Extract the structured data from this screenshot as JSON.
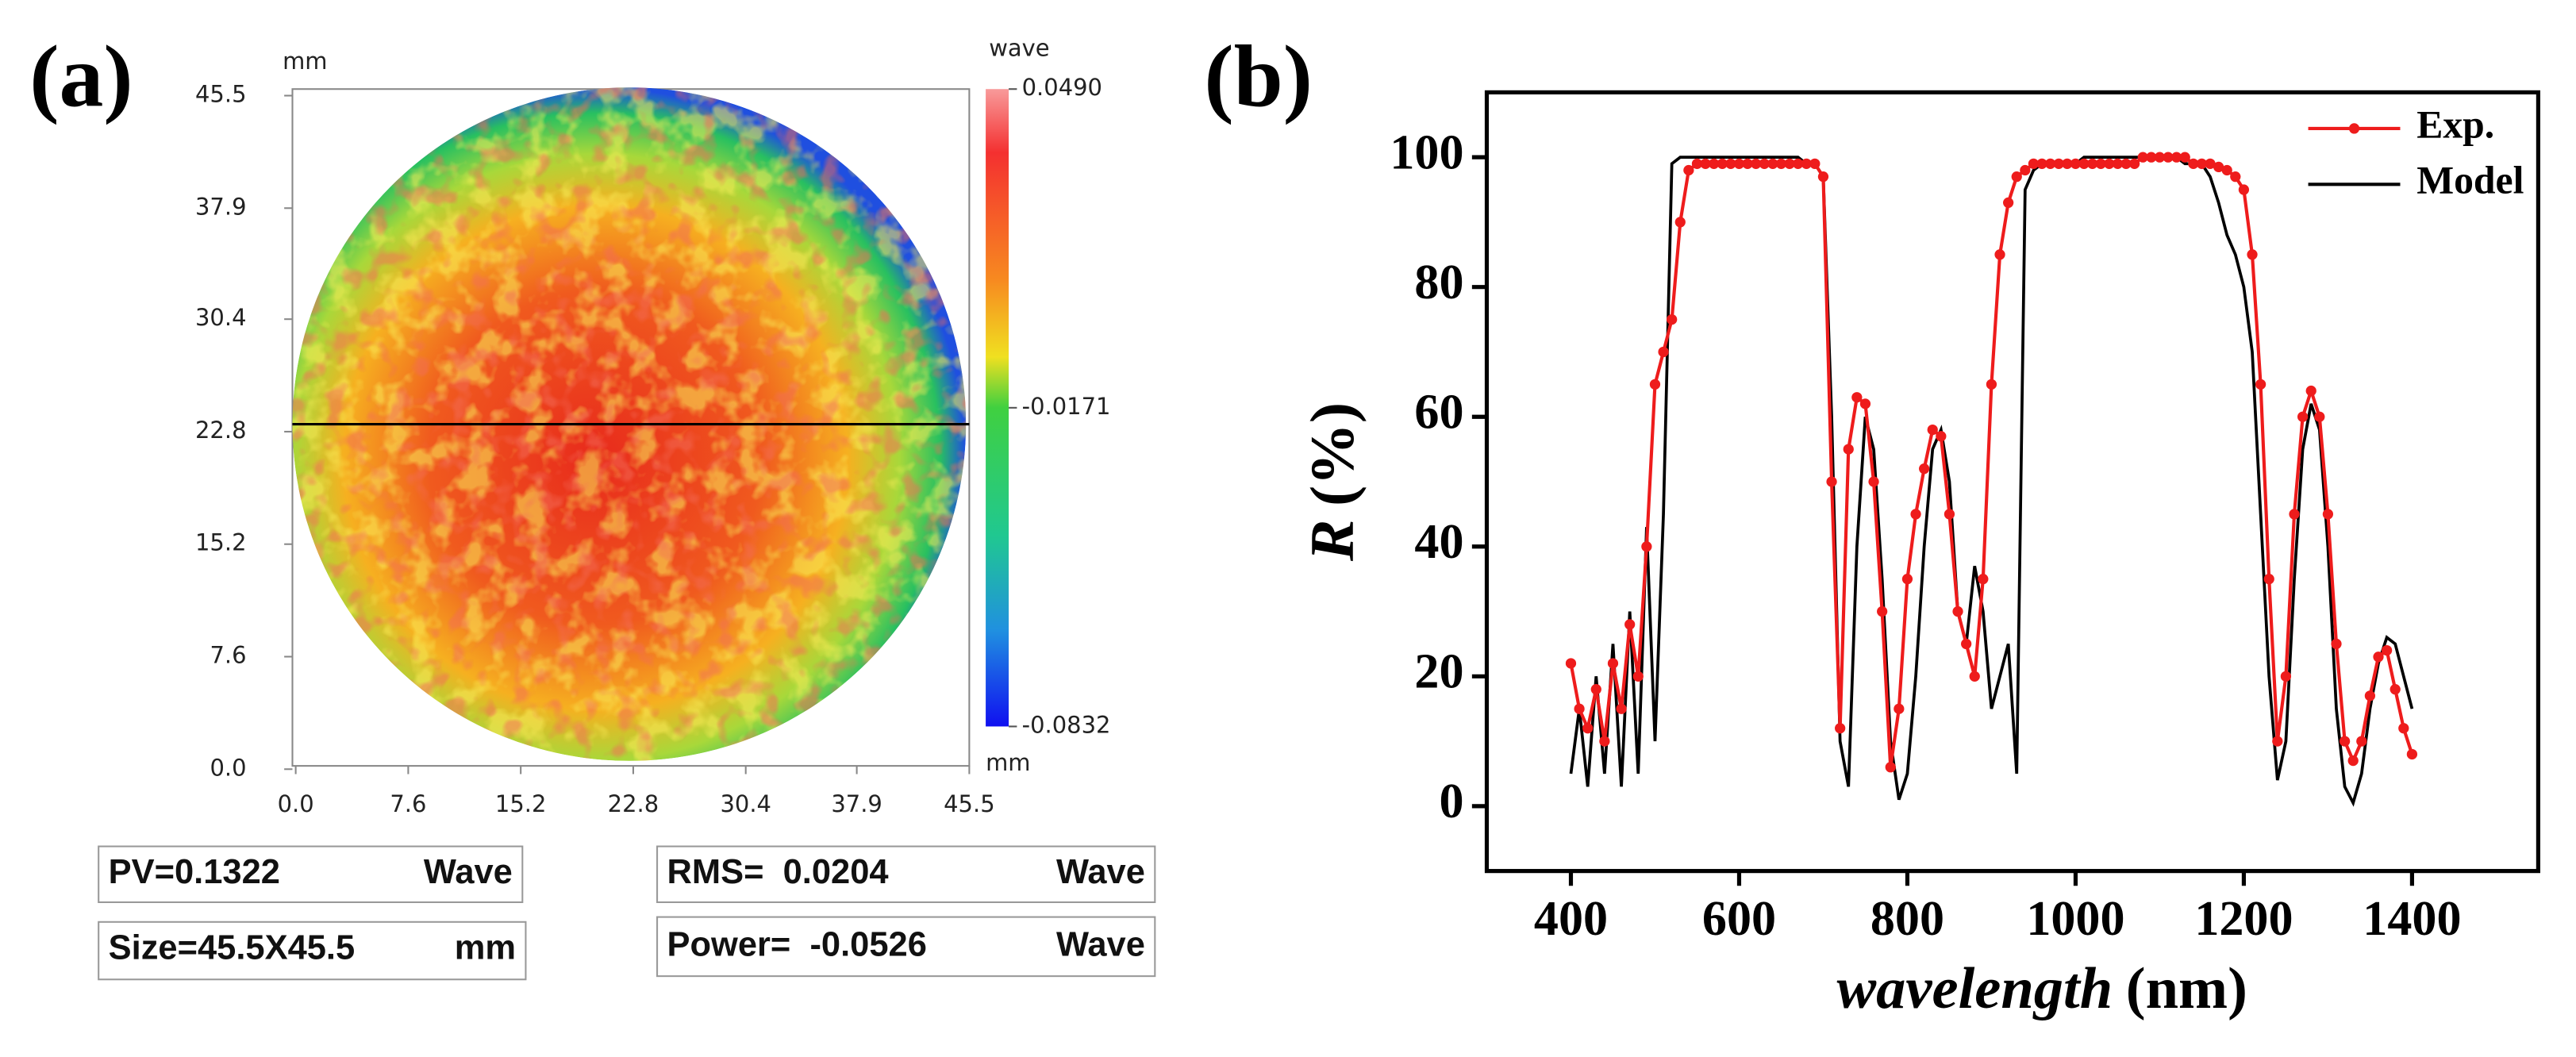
{
  "chart_data": [
    {
      "type": "surface-map",
      "panel_label": "(a)",
      "y_unit": "mm",
      "x_unit": "mm",
      "colorbar_label": "wave",
      "xlim": [
        0,
        45.5
      ],
      "ylim": [
        0,
        45.5
      ],
      "xticks": [
        {
          "value": 0,
          "label": "0.0"
        },
        7.6,
        15.2,
        22.8,
        30.4,
        37.9,
        45.5
      ],
      "yticks": [
        {
          "value": 0,
          "label": "0.0"
        },
        7.6,
        15.2,
        22.8,
        30.4,
        37.9,
        45.5
      ],
      "colorbar_lim": [
        -0.0832,
        0.049
      ],
      "colorbar_ticks": [
        {
          "value": 0.049,
          "label": "0.0490"
        },
        -0.0171,
        -0.0832
      ],
      "stats": [
        {
          "label": "PV=0.1322",
          "unit": "Wave"
        },
        {
          "label": "Size=45.5X45.5",
          "unit": "mm"
        },
        {
          "label": "RMS=  0.0204",
          "unit": "Wave"
        },
        {
          "label": "Power=  -0.0526",
          "unit": "Wave"
        }
      ]
    },
    {
      "type": "line",
      "panel_label": "(b)",
      "ylabel_var": "R",
      "ylabel_unit": "(%)",
      "xlabel_var": "wavelength",
      "xlabel_unit": "(nm)",
      "xlim": [
        300,
        1550
      ],
      "ylim": [
        -10,
        110
      ],
      "xticks": [
        400,
        600,
        800,
        1000,
        1200,
        1400
      ],
      "yticks": [
        0,
        20,
        40,
        60,
        80,
        100
      ],
      "legend": "upper right",
      "x": [
        400,
        410,
        420,
        430,
        440,
        450,
        460,
        470,
        480,
        490,
        500,
        510,
        520,
        530,
        540,
        550,
        560,
        570,
        580,
        590,
        600,
        610,
        620,
        630,
        640,
        650,
        660,
        670,
        680,
        690,
        700,
        710,
        720,
        730,
        740,
        750,
        760,
        770,
        780,
        790,
        800,
        810,
        820,
        830,
        840,
        850,
        860,
        870,
        880,
        890,
        900,
        910,
        920,
        930,
        940,
        950,
        960,
        970,
        980,
        990,
        1000,
        1010,
        1020,
        1030,
        1040,
        1050,
        1060,
        1070,
        1080,
        1090,
        1100,
        1110,
        1120,
        1130,
        1140,
        1150,
        1160,
        1170,
        1180,
        1190,
        1200,
        1210,
        1220,
        1230,
        1240,
        1250,
        1260,
        1270,
        1280,
        1290,
        1300,
        1310,
        1320,
        1330,
        1340,
        1350,
        1360,
        1370,
        1380,
        1390,
        1400
      ],
      "series": [
        {
          "name": "Exp.",
          "color": "#ee1c1c",
          "markers": true,
          "values": [
            22,
            15,
            12,
            18,
            10,
            22,
            15,
            28,
            20,
            40,
            65,
            70,
            75,
            90,
            98,
            99,
            99,
            99,
            99,
            99,
            99,
            99,
            99,
            99,
            99,
            99,
            99,
            99,
            99,
            99,
            97,
            50,
            12,
            55,
            63,
            62,
            50,
            30,
            6,
            15,
            35,
            45,
            52,
            58,
            57,
            45,
            30,
            25,
            20,
            35,
            65,
            85,
            93,
            97,
            98,
            99,
            99,
            99,
            99,
            99,
            99,
            99,
            99,
            99,
            99,
            99,
            99,
            99,
            100,
            100,
            100,
            100,
            100,
            100,
            99,
            99,
            99,
            98.5,
            98,
            97,
            95,
            85,
            65,
            35,
            10,
            20,
            45,
            60,
            64,
            60,
            45,
            25,
            10,
            7,
            10,
            17,
            23,
            24,
            18,
            12,
            8
          ]
        },
        {
          "name": "Model",
          "color": "#000000",
          "markers": false,
          "values": [
            5,
            15,
            3,
            20,
            5,
            25,
            3,
            30,
            5,
            43,
            10,
            45,
            99,
            100,
            100,
            100,
            100,
            100,
            100,
            100,
            100,
            100,
            100,
            100,
            100,
            100,
            100,
            100,
            99,
            99,
            97,
            60,
            10,
            3,
            40,
            60,
            55,
            35,
            10,
            1,
            5,
            20,
            40,
            55,
            58,
            50,
            30,
            25,
            37,
            30,
            15,
            20,
            25,
            5,
            95,
            98,
            99,
            99,
            99,
            99,
            99,
            100,
            100,
            100,
            100,
            100,
            100,
            100,
            100,
            100,
            100,
            100,
            100,
            99,
            99,
            99,
            97,
            93,
            88,
            85,
            80,
            70,
            45,
            20,
            4,
            10,
            35,
            55,
            62,
            58,
            40,
            15,
            3,
            0.5,
            5,
            15,
            22,
            26,
            25,
            20,
            15
          ]
        }
      ]
    }
  ]
}
